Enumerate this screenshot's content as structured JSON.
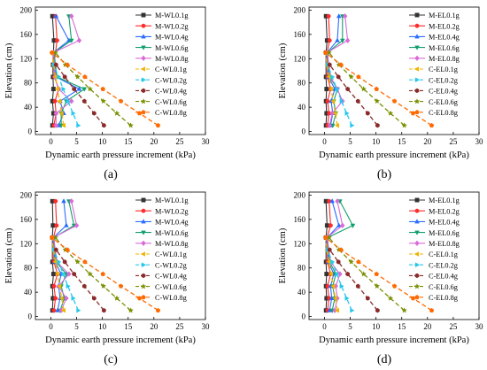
{
  "colors": [
    "#333333",
    "#ff2a2a",
    "#2a6cff",
    "#11a06c",
    "#d86bd8",
    "#f0b400",
    "#26c8ec",
    "#8b2a2a",
    "#7a8f00",
    "#ff6a00"
  ],
  "chart_data": [
    {
      "type": "line",
      "panel_label": "(a)",
      "xlabel": "Dynamic earth pressure increment (kPa)",
      "ylabel": "Elevation (cm)",
      "xlim": [
        -3,
        30
      ],
      "ylim": [
        -5,
        205
      ],
      "xticks": [
        0,
        5,
        10,
        15,
        20,
        25,
        30
      ],
      "yticks": [
        0,
        40,
        80,
        120,
        160,
        200
      ],
      "grid": false,
      "legend_position": "top-right",
      "series": [
        {
          "name": "M-WL0.1g",
          "x": [
            0.3,
            0.5,
            0.3,
            0.5,
            0.4,
            0.4,
            0.6,
            0.3
          ],
          "y": [
            10,
            30,
            50,
            70,
            90,
            110,
            150,
            190
          ]
        },
        {
          "name": "M-WL0.2g",
          "x": [
            0.6,
            1.0,
            0.8,
            1.5,
            0.7,
            0.6,
            1.2,
            0.9
          ],
          "y": [
            10,
            30,
            50,
            70,
            90,
            110,
            150,
            190
          ]
        },
        {
          "name": "M-WL0.4g",
          "x": [
            1.5,
            2.5,
            1.8,
            5.5,
            1.0,
            0.5,
            3.5,
            1.0
          ],
          "y": [
            10,
            30,
            50,
            70,
            90,
            130,
            150,
            190
          ]
        },
        {
          "name": "M-WL0.6g",
          "x": [
            2.0,
            2.0,
            3.0,
            6.5,
            1.2,
            0.6,
            4.0,
            3.5
          ],
          "y": [
            10,
            30,
            50,
            70,
            90,
            130,
            150,
            190
          ]
        },
        {
          "name": "M-WL0.8g",
          "x": [
            1.0,
            1.0,
            4.0,
            1.5,
            0.8,
            0.5,
            5.5,
            4.0
          ],
          "y": [
            10,
            30,
            50,
            70,
            90,
            130,
            150,
            190
          ]
        },
        {
          "name": "C-WL0.1g",
          "x": [
            2.5,
            2.1,
            1.7,
            1.3,
            0.9,
            0.5,
            0.2
          ],
          "y": [
            10,
            30,
            50,
            70,
            90,
            110,
            130
          ]
        },
        {
          "name": "C-WL0.2g",
          "x": [
            5.3,
            4.3,
            3.3,
            2.4,
            1.5,
            0.6
          ],
          "y": [
            10,
            30,
            50,
            70,
            90,
            110
          ]
        },
        {
          "name": "C-WL0.4g",
          "x": [
            10.3,
            8.4,
            6.5,
            4.5,
            2.7,
            1.0
          ],
          "y": [
            10,
            30,
            50,
            70,
            90,
            110
          ]
        },
        {
          "name": "C-WL0.6g",
          "x": [
            15.5,
            12.8,
            10.2,
            7.6,
            5.2,
            2.8,
            0.9
          ],
          "y": [
            10,
            30,
            50,
            70,
            90,
            110,
            130
          ]
        },
        {
          "name": "C-WL0.8g",
          "x": [
            20.8,
            17.2,
            13.6,
            10.1,
            6.6,
            3.2,
            0.2
          ],
          "y": [
            10,
            30,
            50,
            70,
            90,
            110,
            130
          ]
        }
      ]
    },
    {
      "type": "line",
      "panel_label": "(b)",
      "xlabel": "Dynamic earth pressure increment (kPa)",
      "ylabel": "Elevation (cm)",
      "xlim": [
        -3,
        30
      ],
      "ylim": [
        -5,
        205
      ],
      "xticks": [
        0,
        5,
        10,
        15,
        20,
        25,
        30
      ],
      "yticks": [
        0,
        40,
        80,
        120,
        160,
        200
      ],
      "grid": false,
      "legend_position": "top-right",
      "series": [
        {
          "name": "M-EL0.1g",
          "x": [
            0.3,
            0.4,
            0.3,
            0.4,
            0.3,
            0.3,
            0.5,
            0.3
          ],
          "y": [
            10,
            30,
            50,
            70,
            90,
            130,
            150,
            190
          ]
        },
        {
          "name": "M-EL0.2g",
          "x": [
            0.6,
            0.9,
            0.6,
            1.2,
            0.6,
            0.5,
            1.0,
            0.8
          ],
          "y": [
            10,
            30,
            50,
            70,
            90,
            130,
            150,
            190
          ]
        },
        {
          "name": "M-EL0.4g",
          "x": [
            1.2,
            1.6,
            1.3,
            2.0,
            0.8,
            0.5,
            2.5,
            2.8
          ],
          "y": [
            10,
            30,
            50,
            70,
            90,
            130,
            150,
            190
          ]
        },
        {
          "name": "M-EL0.6g",
          "x": [
            1.6,
            2.2,
            1.8,
            2.5,
            1.0,
            0.6,
            3.5,
            3.5
          ],
          "y": [
            10,
            30,
            50,
            70,
            90,
            130,
            150,
            190
          ]
        },
        {
          "name": "M-EL0.8g",
          "x": [
            1.0,
            1.5,
            3.5,
            2.5,
            1.2,
            0.5,
            4.5,
            4.0
          ],
          "y": [
            10,
            30,
            50,
            70,
            90,
            130,
            150,
            190
          ]
        },
        {
          "name": "C-EL0.1g",
          "x": [
            2.5,
            2.1,
            1.7,
            1.3,
            0.9,
            0.5,
            0.2
          ],
          "y": [
            10,
            30,
            50,
            70,
            90,
            110,
            130
          ]
        },
        {
          "name": "C-EL0.2g",
          "x": [
            5.3,
            4.3,
            3.3,
            2.4,
            1.5,
            0.6
          ],
          "y": [
            10,
            30,
            50,
            70,
            90,
            110
          ]
        },
        {
          "name": "C-EL0.4g",
          "x": [
            10.3,
            8.4,
            6.5,
            4.5,
            2.7,
            1.0
          ],
          "y": [
            10,
            30,
            50,
            70,
            90,
            110
          ]
        },
        {
          "name": "C-EL0.6g",
          "x": [
            15.5,
            12.8,
            10.2,
            7.6,
            5.2,
            2.8,
            0.9
          ],
          "y": [
            10,
            30,
            50,
            70,
            90,
            110,
            130
          ]
        },
        {
          "name": "C-EL0.8g",
          "x": [
            20.8,
            17.2,
            13.6,
            10.1,
            6.6,
            3.2,
            0.2
          ],
          "y": [
            10,
            30,
            50,
            70,
            90,
            110,
            130
          ]
        }
      ]
    },
    {
      "type": "line",
      "panel_label": "(c)",
      "xlabel": "Dynamic earth pressure increment (kPa)",
      "ylabel": "Elevation (cm)",
      "xlim": [
        -3,
        30
      ],
      "ylim": [
        -5,
        205
      ],
      "xticks": [
        0,
        5,
        10,
        15,
        20,
        25,
        30
      ],
      "yticks": [
        0,
        40,
        80,
        120,
        160,
        200
      ],
      "grid": false,
      "legend_position": "top-right",
      "series": [
        {
          "name": "M-WL0.1g",
          "x": [
            0.3,
            0.4,
            0.3,
            0.5,
            0.3,
            0.3,
            0.4,
            0.3
          ],
          "y": [
            10,
            30,
            50,
            70,
            90,
            130,
            150,
            190
          ]
        },
        {
          "name": "M-WL0.2g",
          "x": [
            0.6,
            0.9,
            0.6,
            1.3,
            0.6,
            0.5,
            1.1,
            0.9
          ],
          "y": [
            10,
            30,
            50,
            70,
            90,
            130,
            150,
            190
          ]
        },
        {
          "name": "M-WL0.4g",
          "x": [
            1.3,
            1.8,
            1.5,
            2.0,
            0.8,
            0.5,
            3.0,
            2.5
          ],
          "y": [
            10,
            30,
            50,
            70,
            90,
            130,
            150,
            190
          ]
        },
        {
          "name": "M-WL0.6g",
          "x": [
            1.8,
            2.6,
            2.0,
            3.0,
            1.0,
            0.6,
            4.5,
            3.5
          ],
          "y": [
            10,
            30,
            50,
            70,
            90,
            130,
            150,
            190
          ]
        },
        {
          "name": "M-WL0.8g",
          "x": [
            2.0,
            3.0,
            1.5,
            3.5,
            1.2,
            0.5,
            5.0,
            4.0
          ],
          "y": [
            10,
            30,
            50,
            70,
            90,
            130,
            150,
            190
          ]
        },
        {
          "name": "C-WL0.1g",
          "x": [
            2.5,
            2.1,
            1.7,
            1.3,
            0.9,
            0.5,
            0.2
          ],
          "y": [
            10,
            30,
            50,
            70,
            90,
            110,
            130
          ]
        },
        {
          "name": "C-WL0.2g",
          "x": [
            5.3,
            4.3,
            3.3,
            2.4,
            1.5,
            0.6
          ],
          "y": [
            10,
            30,
            50,
            70,
            90,
            110
          ]
        },
        {
          "name": "C-WL0.4g",
          "x": [
            10.3,
            8.4,
            6.5,
            4.5,
            2.7,
            1.0
          ],
          "y": [
            10,
            30,
            50,
            70,
            90,
            110
          ]
        },
        {
          "name": "C-WL0.6g",
          "x": [
            15.5,
            12.8,
            10.2,
            7.6,
            5.2,
            2.8,
            0.9
          ],
          "y": [
            10,
            30,
            50,
            70,
            90,
            110,
            130
          ]
        },
        {
          "name": "C-WL0.8g",
          "x": [
            20.8,
            17.2,
            13.6,
            10.1,
            6.6,
            3.2,
            0.2
          ],
          "y": [
            10,
            30,
            50,
            70,
            90,
            110,
            130
          ]
        }
      ]
    },
    {
      "type": "line",
      "panel_label": "(d)",
      "xlabel": "Dynamic earth pressure increment (kPa)",
      "ylabel": "Elevation (cm)",
      "xlim": [
        -3,
        30
      ],
      "ylim": [
        -5,
        205
      ],
      "xticks": [
        0,
        5,
        10,
        15,
        20,
        25,
        30
      ],
      "yticks": [
        0,
        40,
        80,
        120,
        160,
        200
      ],
      "grid": false,
      "legend_position": "top-right",
      "series": [
        {
          "name": "M-EL0.1g",
          "x": [
            0.3,
            0.4,
            0.3,
            0.4,
            0.3,
            0.3,
            0.5,
            0.3
          ],
          "y": [
            10,
            30,
            50,
            70,
            90,
            130,
            150,
            190
          ]
        },
        {
          "name": "M-EL0.2g",
          "x": [
            0.6,
            0.9,
            0.6,
            1.2,
            0.6,
            0.5,
            1.2,
            0.9
          ],
          "y": [
            10,
            30,
            50,
            70,
            90,
            130,
            150,
            190
          ]
        },
        {
          "name": "M-EL0.4g",
          "x": [
            1.0,
            1.4,
            1.2,
            1.8,
            0.8,
            0.5,
            2.8,
            1.5
          ],
          "y": [
            10,
            30,
            50,
            70,
            90,
            130,
            150,
            190
          ]
        },
        {
          "name": "M-EL0.6g",
          "x": [
            1.5,
            2.0,
            1.6,
            2.2,
            1.0,
            0.6,
            5.5,
            3.0
          ],
          "y": [
            10,
            30,
            50,
            70,
            90,
            130,
            150,
            190
          ]
        },
        {
          "name": "M-EL0.8g",
          "x": [
            2.0,
            2.5,
            2.2,
            3.0,
            1.2,
            0.5,
            3.5,
            2.5
          ],
          "y": [
            10,
            30,
            50,
            70,
            90,
            130,
            150,
            190
          ]
        },
        {
          "name": "C-EL0.1g",
          "x": [
            2.5,
            2.1,
            1.7,
            1.3,
            0.9,
            0.5,
            0.2
          ],
          "y": [
            10,
            30,
            50,
            70,
            90,
            110,
            130
          ]
        },
        {
          "name": "C-EL0.2g",
          "x": [
            5.3,
            4.3,
            3.3,
            2.4,
            1.5,
            0.6
          ],
          "y": [
            10,
            30,
            50,
            70,
            90,
            110
          ]
        },
        {
          "name": "C-EL0.4g",
          "x": [
            10.3,
            8.4,
            6.5,
            4.5,
            2.7,
            1.0
          ],
          "y": [
            10,
            30,
            50,
            70,
            90,
            110
          ]
        },
        {
          "name": "C-EL0.6g",
          "x": [
            15.5,
            12.8,
            10.2,
            7.6,
            5.2,
            2.8,
            0.9
          ],
          "y": [
            10,
            30,
            50,
            70,
            90,
            110,
            130
          ]
        },
        {
          "name": "C-EL0.8g",
          "x": [
            20.8,
            17.2,
            13.6,
            10.1,
            6.6,
            3.2,
            0.2
          ],
          "y": [
            10,
            30,
            50,
            70,
            90,
            110,
            130
          ]
        }
      ]
    }
  ]
}
